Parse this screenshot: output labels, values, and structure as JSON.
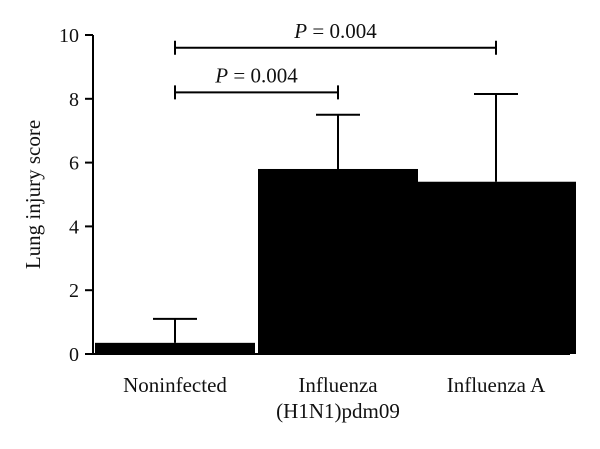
{
  "chart_data": {
    "type": "bar",
    "ylabel": "Lung injury score",
    "xlabel": "",
    "ylim": [
      0,
      10
    ],
    "yticks": [
      "0",
      "2",
      "4",
      "6",
      "8",
      "10"
    ],
    "categories": [
      [
        "Noninfected"
      ],
      [
        "Influenza",
        "(H1N1)pdm09"
      ],
      [
        "Influenza A"
      ]
    ],
    "values": [
      0.35,
      5.8,
      5.4
    ],
    "error_upper": [
      1.1,
      7.5,
      8.15
    ],
    "comparisons": [
      {
        "from": 0,
        "to": 1,
        "y": 8.2,
        "p_symbol": "P",
        "p_value": "= 0.004"
      },
      {
        "from": 0,
        "to": 2,
        "y": 9.6,
        "p_symbol": "P",
        "p_value": "= 0.004"
      }
    ],
    "colors": {
      "bar": "#000000",
      "axis": "#000000"
    }
  }
}
